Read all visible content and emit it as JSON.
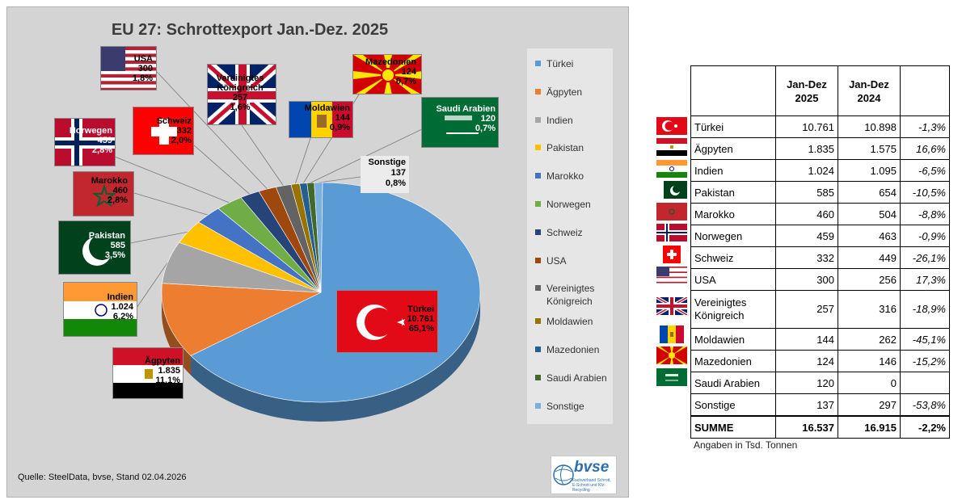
{
  "chart_data": {
    "type": "pie",
    "title": "EU 27: Schrottexport Jan.-Dez. 2025",
    "categories": [
      "Türkei",
      "Ägpyten",
      "Indien",
      "Pakistan",
      "Marokko",
      "Norwegen",
      "Schweiz",
      "USA",
      "Vereinigtes Königreich",
      "Moldawien",
      "Mazedonien",
      "Saudi Arabien",
      "Sonstige"
    ],
    "values": [
      10761,
      1835,
      1024,
      585,
      460,
      459,
      332,
      300,
      257,
      144,
      124,
      120,
      137
    ],
    "colors": [
      "#5b9bd5",
      "#ed7d31",
      "#a5a5a5",
      "#ffc000",
      "#4472c4",
      "#70ad47",
      "#264478",
      "#9e480e",
      "#636363",
      "#997300",
      "#255e91",
      "#43682b",
      "#7cafdd"
    ],
    "legend_position": "right",
    "data_labels": [
      {
        "name": "Türkei",
        "value": "10.761",
        "pct": "65,1%"
      },
      {
        "name": "Ägpyten",
        "value": "1.835",
        "pct": "11,1%"
      },
      {
        "name": "Indien",
        "value": "1.024",
        "pct": "6,2%"
      },
      {
        "name": "Pakistan",
        "value": "585",
        "pct": "3,5%"
      },
      {
        "name": "Marokko",
        "value": "460",
        "pct": "2,8%"
      },
      {
        "name": "Norwegen",
        "value": "459",
        "pct": "2,8%"
      },
      {
        "name": "Schweiz",
        "value": "332",
        "pct": "2,0%"
      },
      {
        "name": "USA",
        "value": "300",
        "pct": "1,8%"
      },
      {
        "name": "Vereinigtes Königreich",
        "value": "257",
        "pct": "1,6%"
      },
      {
        "name": "Moldawien",
        "value": "144",
        "pct": "0,9%"
      },
      {
        "name": "Mazedonien",
        "value": "124",
        "pct": "0,7%"
      },
      {
        "name": "Saudi Arabien",
        "value": "120",
        "pct": "0,7%"
      },
      {
        "name": "Sonstige",
        "value": "137",
        "pct": "0,8%"
      }
    ]
  },
  "source": "Quelle: SteelData, bvse, Stand 02.04.2026",
  "logo": {
    "name": "bvse",
    "subtitle": "Fachverband Schrott, E-Schrott und Kfz-Recycling"
  },
  "table": {
    "headers": [
      "",
      "Jan-Dez 2025",
      "Jan-Dez 2024",
      ""
    ],
    "rows": [
      {
        "country": "Türkei",
        "v2025": "10.761",
        "v2024": "10.898",
        "change": "-1,3%"
      },
      {
        "country": "Ägpyten",
        "v2025": "1.835",
        "v2024": "1.575",
        "change": "16,6%"
      },
      {
        "country": "Indien",
        "v2025": "1.024",
        "v2024": "1.095",
        "change": "-6,5%"
      },
      {
        "country": "Pakistan",
        "v2025": "585",
        "v2024": "654",
        "change": "-10,5%"
      },
      {
        "country": "Marokko",
        "v2025": "460",
        "v2024": "504",
        "change": "-8,8%"
      },
      {
        "country": "Norwegen",
        "v2025": "459",
        "v2024": "463",
        "change": "-0,9%"
      },
      {
        "country": "Schweiz",
        "v2025": "332",
        "v2024": "449",
        "change": "-26,1%"
      },
      {
        "country": "USA",
        "v2025": "300",
        "v2024": "256",
        "change": "17,3%"
      },
      {
        "country": "Vereinigtes Königreich",
        "v2025": "257",
        "v2024": "316",
        "change": "-18,9%"
      },
      {
        "country": "Moldawien",
        "v2025": "144",
        "v2024": "262",
        "change": "-45,1%"
      },
      {
        "country": "Mazedonien",
        "v2025": "124",
        "v2024": "146",
        "change": "-15,2%"
      },
      {
        "country": "Saudi Arabien",
        "v2025": "120",
        "v2024": "0",
        "change": ""
      },
      {
        "country": "Sonstige",
        "v2025": "137",
        "v2024": "297",
        "change": "-53,8%"
      }
    ],
    "sum": {
      "label": "SUMME",
      "v2025": "16.537",
      "v2024": "16.915",
      "change": "-2,2%"
    },
    "unit_note": "Angaben in Tsd. Tonnen"
  },
  "flag_icons": [
    "turkey-flag-icon",
    "egypt-flag-icon",
    "india-flag-icon",
    "pakistan-flag-icon",
    "morocco-flag-icon",
    "norway-flag-icon",
    "switzerland-flag-icon",
    "usa-flag-icon",
    "uk-flag-icon",
    "moldova-flag-icon",
    "north-macedonia-flag-icon",
    "saudi-arabia-flag-icon"
  ]
}
